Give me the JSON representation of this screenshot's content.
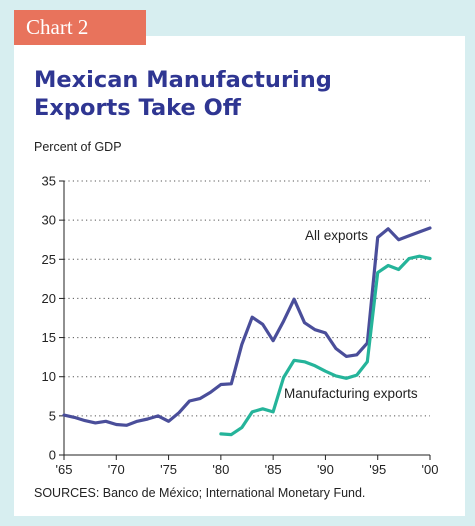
{
  "tag": "Chart 2",
  "title_lines": [
    "Mexican Manufacturing",
    "Exports Take Off"
  ],
  "colors": {
    "frame": "#d7eef0",
    "tag": "#e8735c",
    "title": "#2f3692",
    "all_exports": "#4a4e9a",
    "manufacturing_exports": "#25b49a"
  },
  "source": "SOURCES: Banco de México; International Monetary Fund.",
  "chart_data": {
    "type": "line",
    "title": "Mexican Manufacturing Exports Take Off",
    "ylabel": "Percent of GDP",
    "xlabel": "",
    "xlim": [
      1965,
      2000
    ],
    "ylim": [
      0,
      35
    ],
    "yticks": [
      0,
      5,
      10,
      15,
      20,
      25,
      30,
      35
    ],
    "xticks": [
      {
        "value": 1965,
        "label": "'65"
      },
      {
        "value": 1970,
        "label": "'70"
      },
      {
        "value": 1975,
        "label": "'75"
      },
      {
        "value": 1980,
        "label": "'80"
      },
      {
        "value": 1985,
        "label": "'85"
      },
      {
        "value": 1990,
        "label": "'90"
      },
      {
        "value": 1995,
        "label": "'95"
      },
      {
        "value": 2000,
        "label": "'00"
      }
    ],
    "grid": "horizontal dotted",
    "series": [
      {
        "name": "All exports",
        "x": [
          1965,
          1966,
          1967,
          1968,
          1969,
          1970,
          1971,
          1972,
          1973,
          1974,
          1975,
          1976,
          1977,
          1978,
          1979,
          1980,
          1981,
          1982,
          1983,
          1984,
          1985,
          1986,
          1987,
          1988,
          1989,
          1990,
          1991,
          1992,
          1993,
          1994,
          1995,
          1996,
          1997,
          1998,
          1999,
          2000
        ],
        "values": [
          5.1,
          4.8,
          4.4,
          4.1,
          4.3,
          3.9,
          3.8,
          4.3,
          4.6,
          5.0,
          4.3,
          5.4,
          6.9,
          7.2,
          8.0,
          9.0,
          9.1,
          14.1,
          17.6,
          16.7,
          14.6,
          17.1,
          19.9,
          16.9,
          16.0,
          15.6,
          13.6,
          12.6,
          12.8,
          14.3,
          27.8,
          28.9,
          27.5,
          28.0,
          28.5,
          29.0
        ]
      },
      {
        "name": "Manufacturing exports",
        "x": [
          1980,
          1981,
          1982,
          1983,
          1984,
          1985,
          1986,
          1987,
          1988,
          1989,
          1990,
          1991,
          1992,
          1993,
          1994,
          1995,
          1996,
          1997,
          1998,
          1999,
          2000
        ],
        "values": [
          2.7,
          2.6,
          3.5,
          5.5,
          5.9,
          5.5,
          9.9,
          12.1,
          11.9,
          11.4,
          10.7,
          10.1,
          9.8,
          10.2,
          11.9,
          23.3,
          24.2,
          23.7,
          25.1,
          25.4,
          25.1
        ]
      }
    ],
    "annotations": [
      {
        "text": "All exports",
        "series": "All exports"
      },
      {
        "text": "Manufacturing exports",
        "series": "Manufacturing exports"
      }
    ]
  }
}
